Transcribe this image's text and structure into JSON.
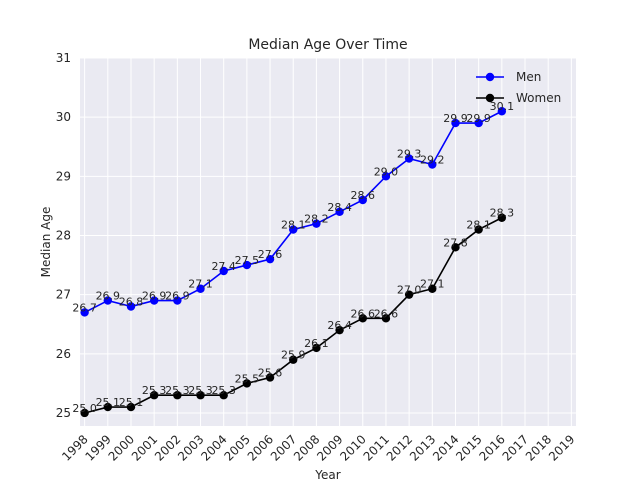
{
  "chart_data": {
    "type": "line",
    "title": "Median Age Over Time",
    "xlabel": "Year",
    "ylabel": "Median Age",
    "xlim": [
      1997.8,
      2019.2
    ],
    "ylim": [
      24.78,
      31.0
    ],
    "x_ticks": [
      1998,
      1999,
      2000,
      2001,
      2002,
      2003,
      2004,
      2005,
      2006,
      2007,
      2008,
      2009,
      2010,
      2011,
      2012,
      2013,
      2014,
      2015,
      2016,
      2017,
      2018,
      2019
    ],
    "y_ticks": [
      25,
      26,
      27,
      28,
      29,
      30,
      31
    ],
    "x_tick_labels": [
      "1998",
      "1999",
      "2000",
      "2001",
      "2002",
      "2003",
      "2004",
      "2005",
      "2006",
      "2007",
      "2008",
      "2009",
      "2010",
      "2011",
      "2012",
      "2013",
      "2014",
      "2015",
      "2016",
      "2017",
      "2018",
      "2019"
    ],
    "y_tick_labels": [
      "25",
      "26",
      "27",
      "28",
      "29",
      "30",
      "31"
    ],
    "grid": true,
    "legend_position": "top-right",
    "x": [
      1998,
      1999,
      2000,
      2001,
      2002,
      2003,
      2004,
      2005,
      2006,
      2007,
      2008,
      2009,
      2010,
      2011,
      2012,
      2013,
      2014,
      2015,
      2016
    ],
    "series": [
      {
        "name": "Men",
        "color": "#0000ff",
        "values": [
          26.7,
          26.9,
          26.8,
          26.9,
          26.9,
          27.1,
          27.4,
          27.5,
          27.6,
          28.1,
          28.2,
          28.4,
          28.6,
          29.0,
          29.3,
          29.2,
          29.9,
          29.9,
          30.1
        ],
        "labels": [
          "26.7",
          "26.9",
          "26.8",
          "26.9",
          "26.9",
          "27.1",
          "27.4",
          "27.5",
          "27.6",
          "28.1",
          "28.2",
          "28.4",
          "28.6",
          "29.0",
          "29.3",
          "29.2",
          "29.9",
          "29.9",
          "30.1"
        ]
      },
      {
        "name": "Women",
        "color": "#000000",
        "values": [
          25.0,
          25.1,
          25.1,
          25.3,
          25.3,
          25.3,
          25.3,
          25.5,
          25.6,
          25.9,
          26.1,
          26.4,
          26.6,
          26.6,
          27.0,
          27.1,
          27.8,
          28.1,
          28.3
        ],
        "labels": [
          "25.0",
          "25.1",
          "25.1",
          "25.3",
          "25.3",
          "25.3",
          "25.3",
          "25.5",
          "25.6",
          "25.9",
          "26.1",
          "26.4",
          "26.6",
          "26.6",
          "27.0",
          "27.1",
          "27.8",
          "28.1",
          "28.3"
        ]
      }
    ]
  },
  "colors": {
    "plot_background": "#eaeaf2",
    "grid": "#ffffff",
    "text": "#262626"
  }
}
